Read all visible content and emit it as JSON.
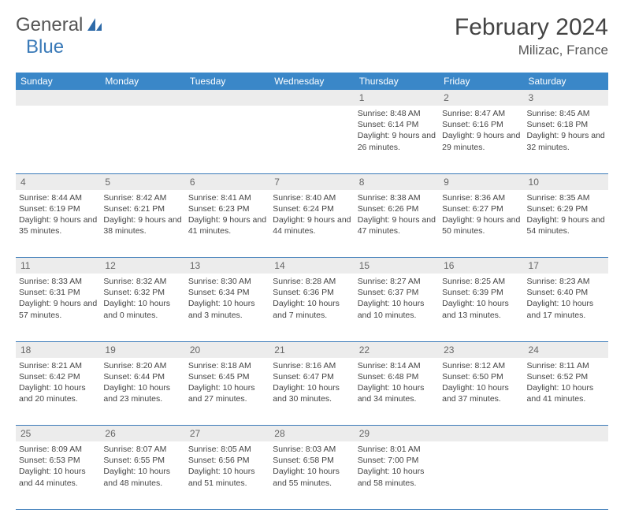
{
  "brand": {
    "general": "General",
    "blue": "Blue"
  },
  "title": "February 2024",
  "location": "Milizac, France",
  "colors": {
    "header_bg": "#3a87c8",
    "header_fg": "#ffffff",
    "rule": "#3a7ab8",
    "daynum_bg": "#ececec",
    "text": "#444444"
  },
  "day_names": [
    "Sunday",
    "Monday",
    "Tuesday",
    "Wednesday",
    "Thursday",
    "Friday",
    "Saturday"
  ],
  "weeks": [
    [
      null,
      null,
      null,
      null,
      {
        "n": "1",
        "sr": "8:48 AM",
        "ss": "6:14 PM",
        "dl": "9 hours and 26 minutes."
      },
      {
        "n": "2",
        "sr": "8:47 AM",
        "ss": "6:16 PM",
        "dl": "9 hours and 29 minutes."
      },
      {
        "n": "3",
        "sr": "8:45 AM",
        "ss": "6:18 PM",
        "dl": "9 hours and 32 minutes."
      }
    ],
    [
      {
        "n": "4",
        "sr": "8:44 AM",
        "ss": "6:19 PM",
        "dl": "9 hours and 35 minutes."
      },
      {
        "n": "5",
        "sr": "8:42 AM",
        "ss": "6:21 PM",
        "dl": "9 hours and 38 minutes."
      },
      {
        "n": "6",
        "sr": "8:41 AM",
        "ss": "6:23 PM",
        "dl": "9 hours and 41 minutes."
      },
      {
        "n": "7",
        "sr": "8:40 AM",
        "ss": "6:24 PM",
        "dl": "9 hours and 44 minutes."
      },
      {
        "n": "8",
        "sr": "8:38 AM",
        "ss": "6:26 PM",
        "dl": "9 hours and 47 minutes."
      },
      {
        "n": "9",
        "sr": "8:36 AM",
        "ss": "6:27 PM",
        "dl": "9 hours and 50 minutes."
      },
      {
        "n": "10",
        "sr": "8:35 AM",
        "ss": "6:29 PM",
        "dl": "9 hours and 54 minutes."
      }
    ],
    [
      {
        "n": "11",
        "sr": "8:33 AM",
        "ss": "6:31 PM",
        "dl": "9 hours and 57 minutes."
      },
      {
        "n": "12",
        "sr": "8:32 AM",
        "ss": "6:32 PM",
        "dl": "10 hours and 0 minutes."
      },
      {
        "n": "13",
        "sr": "8:30 AM",
        "ss": "6:34 PM",
        "dl": "10 hours and 3 minutes."
      },
      {
        "n": "14",
        "sr": "8:28 AM",
        "ss": "6:36 PM",
        "dl": "10 hours and 7 minutes."
      },
      {
        "n": "15",
        "sr": "8:27 AM",
        "ss": "6:37 PM",
        "dl": "10 hours and 10 minutes."
      },
      {
        "n": "16",
        "sr": "8:25 AM",
        "ss": "6:39 PM",
        "dl": "10 hours and 13 minutes."
      },
      {
        "n": "17",
        "sr": "8:23 AM",
        "ss": "6:40 PM",
        "dl": "10 hours and 17 minutes."
      }
    ],
    [
      {
        "n": "18",
        "sr": "8:21 AM",
        "ss": "6:42 PM",
        "dl": "10 hours and 20 minutes."
      },
      {
        "n": "19",
        "sr": "8:20 AM",
        "ss": "6:44 PM",
        "dl": "10 hours and 23 minutes."
      },
      {
        "n": "20",
        "sr": "8:18 AM",
        "ss": "6:45 PM",
        "dl": "10 hours and 27 minutes."
      },
      {
        "n": "21",
        "sr": "8:16 AM",
        "ss": "6:47 PM",
        "dl": "10 hours and 30 minutes."
      },
      {
        "n": "22",
        "sr": "8:14 AM",
        "ss": "6:48 PM",
        "dl": "10 hours and 34 minutes."
      },
      {
        "n": "23",
        "sr": "8:12 AM",
        "ss": "6:50 PM",
        "dl": "10 hours and 37 minutes."
      },
      {
        "n": "24",
        "sr": "8:11 AM",
        "ss": "6:52 PM",
        "dl": "10 hours and 41 minutes."
      }
    ],
    [
      {
        "n": "25",
        "sr": "8:09 AM",
        "ss": "6:53 PM",
        "dl": "10 hours and 44 minutes."
      },
      {
        "n": "26",
        "sr": "8:07 AM",
        "ss": "6:55 PM",
        "dl": "10 hours and 48 minutes."
      },
      {
        "n": "27",
        "sr": "8:05 AM",
        "ss": "6:56 PM",
        "dl": "10 hours and 51 minutes."
      },
      {
        "n": "28",
        "sr": "8:03 AM",
        "ss": "6:58 PM",
        "dl": "10 hours and 55 minutes."
      },
      {
        "n": "29",
        "sr": "8:01 AM",
        "ss": "7:00 PM",
        "dl": "10 hours and 58 minutes."
      },
      null,
      null
    ]
  ],
  "labels": {
    "sunrise": "Sunrise: ",
    "sunset": "Sunset: ",
    "daylight": "Daylight: "
  }
}
